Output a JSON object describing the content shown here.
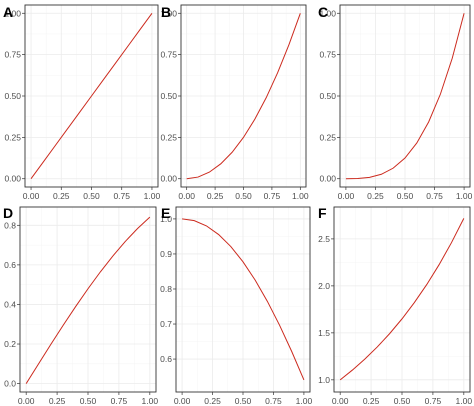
{
  "chart_data": [
    {
      "panel_label": "A",
      "type": "line",
      "x": [
        0,
        0.1,
        0.2,
        0.3,
        0.4,
        0.5,
        0.6,
        0.7,
        0.8,
        0.9,
        1.0
      ],
      "y": [
        0,
        0.1,
        0.2,
        0.3,
        0.4,
        0.5,
        0.6,
        0.7,
        0.8,
        0.9,
        1.0
      ],
      "xlim": [
        0,
        1
      ],
      "ylim": [
        0,
        1
      ],
      "xticks": [
        "0.00",
        "0.25",
        "0.50",
        "0.75",
        "1.00"
      ],
      "yticks": [
        "0.00",
        "0.25",
        "0.50",
        "0.75",
        "1.00"
      ],
      "xtick_values": [
        0,
        0.25,
        0.5,
        0.75,
        1.0
      ],
      "ytick_values": [
        0,
        0.25,
        0.5,
        0.75,
        1.0
      ],
      "color": "#cc2a1e",
      "grid": true
    },
    {
      "panel_label": "B",
      "type": "line",
      "x": [
        0,
        0.1,
        0.2,
        0.3,
        0.4,
        0.5,
        0.6,
        0.7,
        0.8,
        0.9,
        1.0
      ],
      "y": [
        0,
        0.01,
        0.04,
        0.09,
        0.16,
        0.25,
        0.36,
        0.49,
        0.64,
        0.81,
        1.0
      ],
      "xlim": [
        0,
        1
      ],
      "ylim": [
        0,
        1
      ],
      "xticks": [
        "0.00",
        "0.25",
        "0.50",
        "0.75",
        "1.00"
      ],
      "yticks": [
        "0.00",
        "0.25",
        "0.50",
        "0.75",
        "1.00"
      ],
      "xtick_values": [
        0,
        0.25,
        0.5,
        0.75,
        1.0
      ],
      "ytick_values": [
        0,
        0.25,
        0.5,
        0.75,
        1.0
      ],
      "color": "#cc2a1e",
      "grid": true
    },
    {
      "panel_label": "C",
      "type": "line",
      "x": [
        0,
        0.1,
        0.2,
        0.3,
        0.4,
        0.5,
        0.6,
        0.7,
        0.8,
        0.9,
        1.0
      ],
      "y": [
        0,
        0.001,
        0.008,
        0.027,
        0.064,
        0.125,
        0.216,
        0.343,
        0.512,
        0.729,
        1.0
      ],
      "xlim": [
        0,
        1
      ],
      "ylim": [
        0,
        1
      ],
      "xticks": [
        "0.00",
        "0.25",
        "0.50",
        "0.75",
        "1.00"
      ],
      "yticks": [
        "0.00",
        "0.25",
        "0.50",
        "0.75",
        "1.00"
      ],
      "xtick_values": [
        0,
        0.25,
        0.5,
        0.75,
        1.0
      ],
      "ytick_values": [
        0,
        0.25,
        0.5,
        0.75,
        1.0
      ],
      "color": "#cc2a1e",
      "grid": true
    },
    {
      "panel_label": "D",
      "type": "line",
      "x": [
        0,
        0.1,
        0.2,
        0.3,
        0.4,
        0.5,
        0.6,
        0.7,
        0.8,
        0.9,
        1.0
      ],
      "y": [
        0,
        0.0998,
        0.1987,
        0.2955,
        0.3894,
        0.4794,
        0.5646,
        0.6442,
        0.7174,
        0.7833,
        0.8415
      ],
      "xlim": [
        0,
        1
      ],
      "ylim": [
        0,
        0.85
      ],
      "xticks": [
        "0.00",
        "0.25",
        "0.50",
        "0.75",
        "1.00"
      ],
      "yticks": [
        "0.0",
        "0.2",
        "0.4",
        "0.6",
        "0.8"
      ],
      "xtick_values": [
        0,
        0.25,
        0.5,
        0.75,
        1.0
      ],
      "ytick_values": [
        0,
        0.2,
        0.4,
        0.6,
        0.8
      ],
      "color": "#cc2a1e",
      "grid": true
    },
    {
      "panel_label": "E",
      "type": "line",
      "x": [
        0,
        0.1,
        0.2,
        0.3,
        0.4,
        0.5,
        0.6,
        0.7,
        0.8,
        0.9,
        1.0
      ],
      "y": [
        1.0,
        0.995,
        0.9801,
        0.9553,
        0.9211,
        0.8776,
        0.8253,
        0.7648,
        0.6967,
        0.6216,
        0.5403
      ],
      "xlim": [
        0,
        1
      ],
      "ylim": [
        0.53,
        1.01
      ],
      "xticks": [
        "0.00",
        "0.25",
        "0.50",
        "0.75",
        "1.00"
      ],
      "yticks": [
        "0.6",
        "0.7",
        "0.8",
        "0.9",
        "1.0"
      ],
      "xtick_values": [
        0,
        0.25,
        0.5,
        0.75,
        1.0
      ],
      "ytick_values": [
        0.6,
        0.7,
        0.8,
        0.9,
        1.0
      ],
      "color": "#cc2a1e",
      "grid": true
    },
    {
      "panel_label": "F",
      "type": "line",
      "x": [
        0,
        0.1,
        0.2,
        0.3,
        0.4,
        0.5,
        0.6,
        0.7,
        0.8,
        0.9,
        1.0
      ],
      "y": [
        1.0,
        1.1052,
        1.2214,
        1.3499,
        1.4918,
        1.6487,
        1.8221,
        2.0138,
        2.2255,
        2.4596,
        2.7183
      ],
      "xlim": [
        0,
        1
      ],
      "ylim": [
        0.96,
        2.75
      ],
      "xticks": [
        "0.00",
        "0.25",
        "0.50",
        "0.75",
        "1.00"
      ],
      "yticks": [
        "1.0",
        "1.5",
        "2.0",
        "2.5"
      ],
      "xtick_values": [
        0,
        0.25,
        0.5,
        0.75,
        1.0
      ],
      "ytick_values": [
        1.0,
        1.5,
        2.0,
        2.5
      ],
      "color": "#cc2a1e",
      "grid": true
    }
  ]
}
